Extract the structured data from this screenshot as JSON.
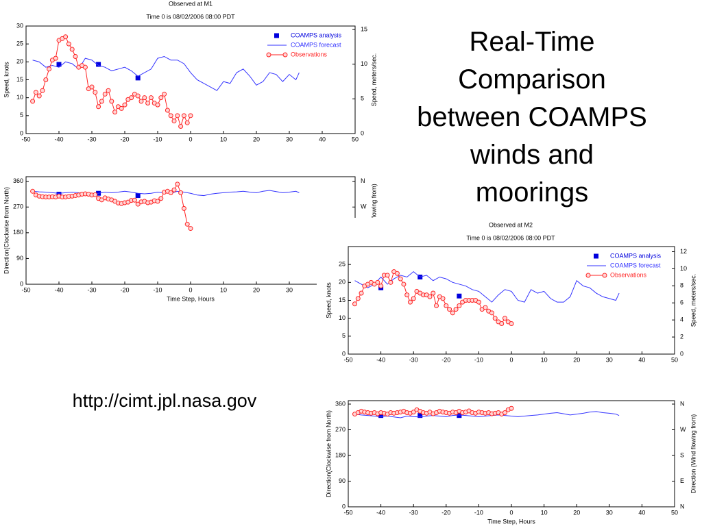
{
  "slide": {
    "title": "Real-Time Comparison between COAMPS winds and moorings",
    "url": "http://cimt.jpl.nasa.gov"
  },
  "chart_data": [
    {
      "type": "line",
      "title": "Observed at M1",
      "subtitle": "Time 0 is 08/02/2006 08:00 PDT",
      "ylabel": "Speed, knots",
      "y2label": "Speed, meters/sec.",
      "xlim": [
        -50,
        50
      ],
      "xticks": [
        -50,
        -40,
        -30,
        -20,
        -10,
        0,
        10,
        20,
        30,
        40,
        50
      ],
      "ylim": [
        0,
        30
      ],
      "yticks": [
        0,
        5,
        10,
        15,
        20,
        25,
        30
      ],
      "y2lim": [
        0,
        15.5
      ],
      "y2ticks": [
        0,
        5,
        10,
        15
      ],
      "legend": "upper right",
      "series": [
        {
          "name": "COAMPS analysis",
          "color": "#0000dd",
          "style": "square",
          "x": [
            -40,
            -28,
            -16
          ],
          "values": [
            19.3,
            19.3,
            15.5
          ]
        },
        {
          "name": "COAMPS forecast",
          "color": "#3333ff",
          "style": "line",
          "x": [
            -48,
            -46,
            -44,
            -42,
            -40,
            -38,
            -36,
            -34,
            -32,
            -30,
            -28,
            -26,
            -24,
            -22,
            -20,
            -18,
            -16,
            -14,
            -12,
            -10,
            -8,
            -6,
            -4,
            -2,
            0,
            2,
            4,
            6,
            8,
            10,
            12,
            14,
            16,
            18,
            20,
            22,
            24,
            26,
            28,
            30,
            32,
            33
          ],
          "values": [
            20.5,
            20,
            18.5,
            19,
            18.5,
            20,
            19.5,
            18,
            21,
            20.5,
            19,
            18.5,
            17.5,
            18,
            18.5,
            17.5,
            16,
            17,
            18,
            21,
            21.5,
            20.5,
            20.5,
            19.5,
            17,
            15,
            14,
            13,
            12,
            14.5,
            14,
            17,
            18,
            16,
            13.5,
            14.5,
            17,
            16.5,
            14.5,
            16.5,
            15,
            17
          ]
        },
        {
          "name": "Observations",
          "color": "#ff2222",
          "style": "line-circle",
          "x": [
            -48,
            -47,
            -46,
            -45,
            -44,
            -43,
            -42,
            -41,
            -40,
            -39,
            -38,
            -37,
            -36,
            -35,
            -34,
            -33,
            -32,
            -31,
            -30,
            -29,
            -28,
            -27,
            -26,
            -25,
            -24,
            -23,
            -22,
            -21,
            -20,
            -19,
            -18,
            -17,
            -16,
            -15,
            -14,
            -13,
            -12,
            -11,
            -10,
            -9,
            -8,
            -7,
            -6,
            -5,
            -4,
            -3,
            -2,
            -1,
            0
          ],
          "values": [
            9,
            11.5,
            10.5,
            12,
            15,
            18,
            20.5,
            21,
            26,
            26.5,
            27,
            25,
            23.5,
            21.5,
            18.5,
            19,
            18.5,
            12.5,
            13,
            11.5,
            7.5,
            9,
            11,
            12,
            9,
            6,
            7.5,
            7,
            8,
            9.5,
            10,
            11,
            10.5,
            9,
            10,
            8.5,
            10,
            8.5,
            8,
            10,
            11,
            6.5,
            5,
            3.5,
            5,
            2,
            5,
            3,
            5
          ]
        }
      ]
    },
    {
      "type": "line",
      "xlabel": "Time Step, Hours",
      "ylabel": "Direction(Clockwise from North)",
      "y2label": "flowing from)",
      "xlim": [
        -50,
        50
      ],
      "xticks": [
        -50,
        -40,
        -30,
        -20,
        -10,
        0,
        10,
        20,
        30,
        40,
        50
      ],
      "ylim": [
        0,
        376
      ],
      "yticks": [
        0,
        90,
        180,
        270,
        360
      ],
      "y2lim": [
        0,
        376
      ],
      "y2ticks": [
        {
          "value": 270,
          "label": "W"
        },
        {
          "value": 360,
          "label": "N"
        }
      ],
      "series": [
        {
          "name": "COAMPS analysis",
          "color": "#0000dd",
          "style": "square",
          "x": [
            -40,
            -28,
            -16
          ],
          "values": [
            315,
            318,
            310
          ]
        },
        {
          "name": "COAMPS forecast",
          "color": "#3333ff",
          "style": "line",
          "x": [
            -48,
            -46,
            -44,
            -42,
            -40,
            -38,
            -36,
            -34,
            -32,
            -30,
            -28,
            -26,
            -24,
            -22,
            -20,
            -18,
            -16,
            -14,
            -12,
            -10,
            -8,
            -6,
            -4,
            -2,
            0,
            2,
            4,
            6,
            8,
            10,
            12,
            14,
            16,
            18,
            20,
            22,
            24,
            26,
            28,
            30,
            32,
            33
          ],
          "values": [
            325,
            323,
            322,
            320,
            318,
            320,
            322,
            320,
            315,
            312,
            318,
            322,
            320,
            322,
            325,
            322,
            318,
            316,
            318,
            322,
            320,
            318,
            325,
            322,
            318,
            312,
            310,
            315,
            318,
            320,
            322,
            323,
            325,
            322,
            320,
            325,
            328,
            324,
            320,
            322,
            325,
            320
          ]
        },
        {
          "name": "Observations",
          "color": "#ff2222",
          "style": "line-circle",
          "x": [
            -48,
            -47,
            -46,
            -45,
            -44,
            -43,
            -42,
            -41,
            -40,
            -39,
            -38,
            -37,
            -36,
            -35,
            -34,
            -33,
            -32,
            -31,
            -30,
            -29,
            -28,
            -27,
            -26,
            -25,
            -24,
            -23,
            -22,
            -21,
            -20,
            -19,
            -18,
            -17,
            -16,
            -15,
            -14,
            -13,
            -12,
            -11,
            -10,
            -9,
            -8,
            -7,
            -6,
            -5,
            -4,
            -3,
            -2,
            -1,
            0
          ],
          "values": [
            325,
            312,
            308,
            306,
            305,
            305,
            306,
            305,
            308,
            305,
            305,
            307,
            308,
            310,
            312,
            315,
            316,
            315,
            312,
            313,
            300,
            295,
            302,
            298,
            295,
            290,
            284,
            282,
            285,
            287,
            293,
            294,
            280,
            288,
            290,
            285,
            287,
            292,
            290,
            300,
            322,
            325,
            320,
            330,
            350,
            320,
            265,
            210,
            195
          ]
        }
      ]
    },
    {
      "type": "line",
      "title": "Observed at M2",
      "subtitle": "Time 0 is 08/02/2006 08:00 PDT",
      "ylabel": "Speed, knots",
      "y2label": "Speed, meters/sec.",
      "xlim": [
        -50,
        50
      ],
      "xticks": [
        -50,
        -40,
        -30,
        -20,
        -10,
        0,
        10,
        20,
        30,
        40,
        50
      ],
      "ylim": [
        0,
        30
      ],
      "yticks": [
        0,
        5,
        10,
        15,
        20,
        25
      ],
      "y2lim": [
        0,
        12.6
      ],
      "y2ticks": [
        0,
        2,
        4,
        6,
        8,
        10,
        12
      ],
      "legend": "upper right",
      "series": [
        {
          "name": "COAMPS analysis",
          "color": "#0000dd",
          "style": "square",
          "x": [
            -40,
            -28,
            -16
          ],
          "values": [
            18.5,
            21.5,
            16.2
          ]
        },
        {
          "name": "COAMPS forecast",
          "color": "#3333ff",
          "style": "line",
          "x": [
            -48,
            -46,
            -44,
            -42,
            -40,
            -38,
            -36,
            -34,
            -32,
            -30,
            -28,
            -26,
            -24,
            -22,
            -20,
            -18,
            -16,
            -14,
            -12,
            -10,
            -8,
            -6,
            -4,
            -2,
            0,
            2,
            4,
            6,
            8,
            10,
            12,
            14,
            16,
            18,
            20,
            22,
            24,
            26,
            28,
            30,
            32,
            33
          ],
          "values": [
            20.5,
            19.5,
            18.5,
            19.5,
            21.5,
            19.5,
            21,
            22,
            21.5,
            23,
            21.5,
            22,
            20.5,
            21.5,
            21,
            20,
            19.5,
            19,
            18,
            17.5,
            16,
            14.5,
            16.5,
            18,
            17.5,
            15,
            14.5,
            18,
            17,
            17.5,
            15.5,
            14.5,
            14.5,
            16,
            20.5,
            19,
            18.5,
            17,
            16,
            15.5,
            15,
            17
          ]
        },
        {
          "name": "Observations",
          "color": "#ff2222",
          "style": "line-circle",
          "x": [
            -48,
            -47,
            -46,
            -45,
            -44,
            -43,
            -42,
            -41,
            -40,
            -39,
            -38,
            -37,
            -36,
            -35,
            -34,
            -33,
            -32,
            -31,
            -30,
            -29,
            -28,
            -27,
            -26,
            -25,
            -24,
            -23,
            -22,
            -21,
            -20,
            -19,
            -18,
            -17,
            -16,
            -15,
            -14,
            -13,
            -12,
            -11,
            -10,
            -9,
            -8,
            -7,
            -6,
            -5,
            -4,
            -3,
            -2,
            -1,
            0
          ],
          "values": [
            14,
            15.5,
            17,
            19,
            19.5,
            20,
            19.5,
            20,
            19,
            22,
            22,
            20,
            23,
            22.5,
            21,
            19.5,
            16.5,
            14.5,
            15.5,
            17.5,
            17,
            16.5,
            16.5,
            16,
            17,
            13.5,
            16,
            15.5,
            13.5,
            12.5,
            11.5,
            12.5,
            13.5,
            14.5,
            15,
            15,
            15,
            15,
            14.5,
            12.5,
            13,
            12,
            11.5,
            10,
            9,
            8.5,
            10,
            9,
            8.5
          ]
        }
      ]
    },
    {
      "type": "line",
      "xlabel": "Time Step, Hours",
      "ylabel": "Direction(Clockwise from North)",
      "y2label": "Direction (Wind flowing from)",
      "xlim": [
        -50,
        50
      ],
      "xticks": [
        -50,
        -40,
        -30,
        -20,
        -10,
        0,
        10,
        20,
        30,
        40,
        50
      ],
      "ylim": [
        0,
        372
      ],
      "yticks": [
        0,
        90,
        180,
        270,
        360
      ],
      "y2lim": [
        0,
        372
      ],
      "y2ticks": [
        {
          "value": 0,
          "label": "N"
        },
        {
          "value": 90,
          "label": "E"
        },
        {
          "value": 180,
          "label": "S"
        },
        {
          "value": 270,
          "label": "W"
        },
        {
          "value": 360,
          "label": "N"
        }
      ],
      "series": [
        {
          "name": "COAMPS analysis",
          "color": "#0000dd",
          "style": "square",
          "x": [
            -40,
            -28,
            -16
          ],
          "values": [
            320,
            320,
            320
          ]
        },
        {
          "name": "COAMPS forecast",
          "color": "#3333ff",
          "style": "line",
          "x": [
            -48,
            -46,
            -44,
            -42,
            -40,
            -38,
            -36,
            -34,
            -32,
            -30,
            -28,
            -26,
            -24,
            -22,
            -20,
            -18,
            -16,
            -14,
            -12,
            -10,
            -8,
            -6,
            -4,
            -2,
            0,
            2,
            4,
            6,
            8,
            10,
            12,
            14,
            16,
            18,
            20,
            22,
            24,
            26,
            28,
            30,
            32,
            33
          ],
          "values": [
            325,
            322,
            320,
            318,
            316,
            318,
            315,
            312,
            318,
            316,
            315,
            318,
            320,
            318,
            316,
            320,
            322,
            320,
            318,
            316,
            318,
            320,
            322,
            320,
            318,
            316,
            318,
            320,
            322,
            325,
            328,
            330,
            326,
            322,
            325,
            328,
            332,
            334,
            330,
            328,
            325,
            320
          ]
        },
        {
          "name": "Observations",
          "color": "#ff2222",
          "style": "line-circle",
          "x": [
            -48,
            -47,
            -46,
            -45,
            -44,
            -43,
            -42,
            -41,
            -40,
            -39,
            -38,
            -37,
            -36,
            -35,
            -34,
            -33,
            -32,
            -31,
            -30,
            -29,
            -28,
            -27,
            -26,
            -25,
            -24,
            -23,
            -22,
            -21,
            -20,
            -19,
            -18,
            -17,
            -16,
            -15,
            -14,
            -13,
            -12,
            -11,
            -10,
            -9,
            -8,
            -7,
            -6,
            -5,
            -4,
            -3,
            -2,
            -1,
            0
          ],
          "values": [
            325,
            330,
            335,
            332,
            330,
            328,
            330,
            326,
            330,
            328,
            325,
            330,
            328,
            330,
            332,
            335,
            330,
            328,
            332,
            340,
            335,
            330,
            328,
            332,
            326,
            330,
            335,
            332,
            330,
            328,
            332,
            330,
            335,
            330,
            332,
            336,
            330,
            328,
            332,
            330,
            328,
            330,
            326,
            328,
            330,
            325,
            330,
            340,
            345
          ]
        }
      ]
    }
  ]
}
